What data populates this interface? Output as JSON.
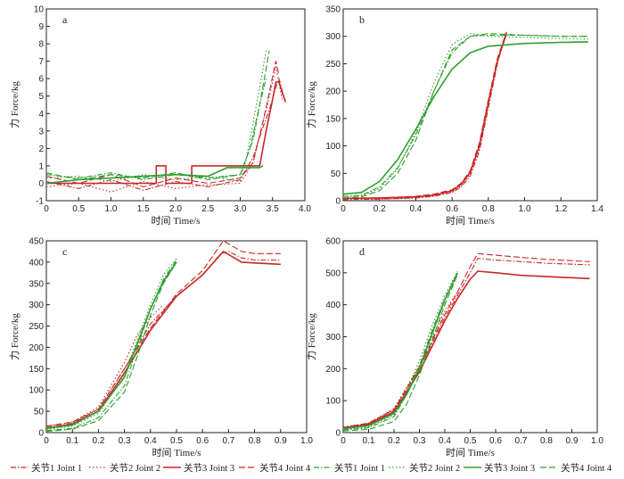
{
  "chart_data": [
    {
      "type": "line",
      "panel": "a",
      "xlabel": "时间 Time/s",
      "ylabel": "力 Force/kg",
      "xlim": [
        0,
        4.0
      ],
      "ylim": [
        -1,
        10
      ],
      "xticks": [
        "0",
        "0.5",
        "1.0",
        "1.5",
        "2.0",
        "2.5",
        "3.0",
        "3.5",
        "4.0"
      ],
      "yticks": [
        "-1",
        "0",
        "1",
        "2",
        "3",
        "4",
        "5",
        "6",
        "7",
        "8",
        "9",
        "10"
      ],
      "series": [
        {
          "name": "关节1 Joint 1",
          "group": "red",
          "style": "dashdot",
          "x": [
            0,
            0.5,
            1.0,
            1.5,
            2.0,
            2.5,
            3.0,
            3.2,
            3.35,
            3.45,
            3.55,
            3.6,
            3.7
          ],
          "y": [
            0.1,
            -0.3,
            0.2,
            -0.4,
            0.1,
            -0.2,
            0.2,
            1.5,
            3.2,
            4.2,
            5.5,
            6.0,
            4.6
          ]
        },
        {
          "name": "关节2 Joint 2",
          "group": "red",
          "style": "dotted",
          "x": [
            0,
            0.5,
            1.0,
            1.5,
            2.0,
            2.5,
            3.0,
            3.2,
            3.3,
            3.4,
            3.5,
            3.55,
            3.65
          ],
          "y": [
            -0.2,
            0.0,
            -0.5,
            0.1,
            -0.3,
            -0.1,
            0.0,
            1.2,
            2.8,
            4.2,
            5.8,
            6.7,
            4.8
          ]
        },
        {
          "name": "关节3 Joint 3",
          "group": "red",
          "style": "solid",
          "x": [
            0,
            1.7,
            1.7,
            1.85,
            1.85,
            2.25,
            2.25,
            3.3,
            3.4,
            3.5,
            3.55,
            3.6,
            3.65,
            3.7
          ],
          "y": [
            0.0,
            0.0,
            1.0,
            1.0,
            0.0,
            0.0,
            1.0,
            1.0,
            3.0,
            4.8,
            5.8,
            5.8,
            5.2,
            4.7
          ]
        },
        {
          "name": "关节4 Joint 4",
          "group": "red",
          "style": "dashed",
          "x": [
            0,
            0.5,
            1.0,
            1.5,
            2.0,
            2.5,
            3.0,
            3.2,
            3.35,
            3.45,
            3.55,
            3.6
          ],
          "y": [
            0.4,
            0.0,
            0.5,
            -0.2,
            0.3,
            0.0,
            0.3,
            1.2,
            3.5,
            5.2,
            7.0,
            6.2
          ]
        },
        {
          "name": "关节1 Joint 1",
          "group": "green",
          "style": "dashdot",
          "x": [
            0,
            0.5,
            1.0,
            1.5,
            2.0,
            2.5,
            3.0,
            3.2,
            3.3,
            3.4
          ],
          "y": [
            0.5,
            0.3,
            0.6,
            0.2,
            0.5,
            0.3,
            0.5,
            2.5,
            4.5,
            6.0
          ]
        },
        {
          "name": "关节2 Joint 2",
          "group": "green",
          "style": "dotted",
          "x": [
            0,
            0.5,
            1.0,
            1.5,
            2.0,
            2.5,
            3.0,
            3.1,
            3.2,
            3.3,
            3.4
          ],
          "y": [
            0.3,
            0.4,
            0.1,
            0.5,
            0.2,
            0.4,
            0.1,
            1.5,
            3.5,
            5.5,
            7.6
          ]
        },
        {
          "name": "关节3 Joint 3",
          "group": "green",
          "style": "solid",
          "x": [
            0,
            0.5,
            1.0,
            1.5,
            2.0,
            2.5,
            2.8,
            3.3,
            3.35
          ],
          "y": [
            0.0,
            0.2,
            0.3,
            0.4,
            0.5,
            0.4,
            0.9,
            0.9,
            1.0
          ]
        },
        {
          "name": "关节4 Joint 4",
          "group": "green",
          "style": "dashed",
          "x": [
            0,
            0.5,
            1.0,
            1.5,
            2.0,
            2.5,
            3.0,
            3.15,
            3.3,
            3.45
          ],
          "y": [
            0.6,
            0.2,
            0.5,
            0.3,
            0.6,
            0.2,
            0.5,
            2.0,
            4.5,
            7.6
          ]
        }
      ]
    },
    {
      "type": "line",
      "panel": "b",
      "xlabel": "时间 Time/s",
      "ylabel": "力 Force/kg",
      "xlim": [
        0,
        1.4
      ],
      "ylim": [
        0,
        350
      ],
      "xticks": [
        "0",
        "0.2",
        "0.4",
        "0.6",
        "0.8",
        "1.0",
        "1.2",
        "1.4"
      ],
      "yticks": [
        "0",
        "50",
        "100",
        "150",
        "200",
        "250",
        "300",
        "350"
      ],
      "series": [
        {
          "name": "关节1 Joint 1",
          "group": "red",
          "style": "dashdot",
          "x": [
            0,
            0.2,
            0.4,
            0.5,
            0.6,
            0.65,
            0.7,
            0.75,
            0.8,
            0.85,
            0.9
          ],
          "y": [
            2,
            3,
            5,
            8,
            15,
            25,
            45,
            90,
            170,
            250,
            310
          ]
        },
        {
          "name": "关节2 Joint 2",
          "group": "red",
          "style": "dotted",
          "x": [
            0,
            0.2,
            0.4,
            0.5,
            0.6,
            0.65,
            0.7,
            0.75,
            0.8,
            0.85,
            0.9
          ],
          "y": [
            3,
            3,
            5,
            9,
            16,
            27,
            48,
            95,
            175,
            255,
            305
          ]
        },
        {
          "name": "关节3 Joint 3",
          "group": "red",
          "style": "solid",
          "x": [
            0,
            0.2,
            0.4,
            0.5,
            0.6,
            0.65,
            0.7,
            0.75,
            0.8,
            0.85,
            0.9
          ],
          "y": [
            4,
            5,
            7,
            10,
            18,
            30,
            52,
            100,
            180,
            255,
            305
          ]
        },
        {
          "name": "关节4 Joint 4",
          "group": "red",
          "style": "dashed",
          "x": [
            0,
            0.2,
            0.4,
            0.5,
            0.6,
            0.65,
            0.7,
            0.75,
            0.8,
            0.85,
            0.9
          ],
          "y": [
            5,
            5,
            8,
            12,
            20,
            32,
            55,
            105,
            185,
            260,
            308
          ]
        },
        {
          "name": "关节1 Joint 1",
          "group": "green",
          "style": "dashdot",
          "x": [
            0,
            0.1,
            0.2,
            0.3,
            0.4,
            0.5,
            0.6,
            0.7,
            0.8,
            1.0,
            1.2,
            1.35
          ],
          "y": [
            8,
            10,
            25,
            60,
            120,
            200,
            270,
            300,
            302,
            302,
            300,
            300
          ]
        },
        {
          "name": "关节2 Joint 2",
          "group": "green",
          "style": "dotted",
          "x": [
            0,
            0.1,
            0.2,
            0.3,
            0.4,
            0.5,
            0.6,
            0.7,
            0.8,
            1.0,
            1.2,
            1.35
          ],
          "y": [
            7,
            9,
            22,
            58,
            125,
            215,
            285,
            305,
            300,
            298,
            296,
            295
          ]
        },
        {
          "name": "关节3 Joint 3",
          "group": "green",
          "style": "solid",
          "x": [
            0,
            0.1,
            0.2,
            0.3,
            0.4,
            0.5,
            0.6,
            0.7,
            0.8,
            1.0,
            1.2,
            1.35
          ],
          "y": [
            12,
            15,
            35,
            75,
            130,
            190,
            240,
            270,
            282,
            287,
            289,
            290
          ]
        },
        {
          "name": "关节4 Joint 4",
          "group": "green",
          "style": "dashed",
          "x": [
            0,
            0.1,
            0.2,
            0.3,
            0.4,
            0.5,
            0.6,
            0.7,
            0.8,
            1.0,
            1.2,
            1.35
          ],
          "y": [
            5,
            7,
            18,
            50,
            110,
            200,
            275,
            300,
            305,
            302,
            300,
            300
          ]
        }
      ]
    },
    {
      "type": "line",
      "panel": "c",
      "xlabel": "时间 Time/s",
      "ylabel": "力 Force/kg",
      "xlim": [
        0,
        1.0
      ],
      "ylim": [
        0,
        450
      ],
      "xticks": [
        "0",
        "0.1",
        "0.2",
        "0.3",
        "0.4",
        "0.5",
        "0.6",
        "0.7",
        "0.8",
        "0.9",
        "1.0"
      ],
      "yticks": [
        "0",
        "50",
        "100",
        "150",
        "200",
        "250",
        "300",
        "350",
        "400",
        "450"
      ],
      "series": [
        {
          "name": "关节1 Joint 1",
          "group": "red",
          "style": "dashdot",
          "x": [
            0,
            0.1,
            0.2,
            0.3,
            0.4,
            0.5,
            0.6,
            0.67,
            0.7,
            0.75,
            0.8,
            0.9
          ],
          "y": [
            12,
            22,
            55,
            150,
            255,
            320,
            370,
            420,
            425,
            410,
            405,
            405
          ]
        },
        {
          "name": "关节2 Joint 2",
          "group": "red",
          "style": "dotted",
          "x": [
            0,
            0.1,
            0.2,
            0.3,
            0.35,
            0.4,
            0.45
          ],
          "y": [
            15,
            25,
            60,
            165,
            230,
            270,
            300
          ]
        },
        {
          "name": "关节3 Joint 3",
          "group": "red",
          "style": "solid",
          "x": [
            0,
            0.1,
            0.2,
            0.3,
            0.4,
            0.5,
            0.6,
            0.68,
            0.75,
            0.8,
            0.9
          ],
          "y": [
            10,
            20,
            50,
            140,
            240,
            320,
            370,
            425,
            400,
            398,
            395
          ]
        },
        {
          "name": "关节4 Joint 4",
          "group": "red",
          "style": "dashed",
          "x": [
            0,
            0.1,
            0.2,
            0.3,
            0.4,
            0.5,
            0.6,
            0.68,
            0.75,
            0.8,
            0.9
          ],
          "y": [
            15,
            25,
            55,
            150,
            245,
            325,
            380,
            450,
            425,
            420,
            420
          ]
        },
        {
          "name": "关节1 Joint 1",
          "group": "green",
          "style": "dashdot",
          "x": [
            0,
            0.1,
            0.2,
            0.3,
            0.35,
            0.4,
            0.45,
            0.5
          ],
          "y": [
            5,
            10,
            35,
            110,
            200,
            290,
            360,
            405
          ]
        },
        {
          "name": "关节2 Joint 2",
          "group": "green",
          "style": "dotted",
          "x": [
            0,
            0.1,
            0.2,
            0.3,
            0.35,
            0.4,
            0.45,
            0.5
          ],
          "y": [
            8,
            15,
            45,
            135,
            220,
            300,
            370,
            408
          ]
        },
        {
          "name": "关节3 Joint 3",
          "group": "green",
          "style": "solid",
          "x": [
            0,
            0.1,
            0.2,
            0.3,
            0.35,
            0.4,
            0.45,
            0.5
          ],
          "y": [
            10,
            18,
            50,
            130,
            210,
            290,
            355,
            400
          ]
        },
        {
          "name": "关节4 Joint 4",
          "group": "green",
          "style": "dashed",
          "x": [
            0,
            0.1,
            0.2,
            0.3,
            0.35,
            0.4,
            0.45,
            0.5
          ],
          "y": [
            3,
            8,
            28,
            95,
            180,
            275,
            350,
            400
          ]
        }
      ]
    },
    {
      "type": "line",
      "panel": "d",
      "xlabel": "时间 Time/s",
      "ylabel": "力 Force/kg",
      "xlim": [
        0,
        1.0
      ],
      "ylim": [
        0,
        600
      ],
      "xticks": [
        "0",
        "0.1",
        "0.2",
        "0.3",
        "0.4",
        "0.5",
        "0.6",
        "0.7",
        "0.8",
        "0.9",
        "1.0"
      ],
      "yticks": [
        "0",
        "100",
        "200",
        "300",
        "400",
        "500",
        "600"
      ],
      "series": [
        {
          "name": "关节1 Joint 1",
          "group": "red",
          "style": "dashdot",
          "x": [
            0,
            0.1,
            0.2,
            0.3,
            0.4,
            0.45,
            0.5,
            0.53,
            0.6,
            0.7,
            0.8,
            0.97
          ],
          "y": [
            15,
            28,
            70,
            200,
            360,
            430,
            500,
            545,
            540,
            535,
            530,
            525
          ]
        },
        {
          "name": "关节2 Joint 2",
          "group": "red",
          "style": "dotted",
          "x": [
            0,
            0.1,
            0.2,
            0.3,
            0.35,
            0.4,
            0.45
          ],
          "y": [
            18,
            30,
            75,
            210,
            300,
            380,
            440
          ]
        },
        {
          "name": "关节3 Joint 3",
          "group": "red",
          "style": "solid",
          "x": [
            0,
            0.1,
            0.2,
            0.3,
            0.4,
            0.45,
            0.5,
            0.53,
            0.6,
            0.7,
            0.8,
            0.97
          ],
          "y": [
            14,
            26,
            65,
            190,
            350,
            420,
            480,
            505,
            500,
            492,
            488,
            482
          ]
        },
        {
          "name": "关节4 Joint 4",
          "group": "red",
          "style": "dashed",
          "x": [
            0,
            0.1,
            0.2,
            0.3,
            0.4,
            0.45,
            0.5,
            0.53,
            0.6,
            0.7,
            0.8,
            0.97
          ],
          "y": [
            16,
            30,
            72,
            205,
            370,
            440,
            520,
            560,
            555,
            548,
            542,
            535
          ]
        },
        {
          "name": "关节1 Joint 1",
          "group": "green",
          "style": "dashdot",
          "x": [
            0,
            0.1,
            0.2,
            0.25,
            0.3,
            0.35,
            0.4,
            0.45
          ],
          "y": [
            8,
            15,
            50,
            120,
            210,
            320,
            420,
            500
          ]
        },
        {
          "name": "关节2 Joint 2",
          "group": "green",
          "style": "dotted",
          "x": [
            0,
            0.1,
            0.2,
            0.25,
            0.3,
            0.35,
            0.4,
            0.45
          ],
          "y": [
            10,
            18,
            55,
            130,
            225,
            335,
            430,
            505
          ]
        },
        {
          "name": "关节3 Joint 3",
          "group": "green",
          "style": "solid",
          "x": [
            0,
            0.1,
            0.2,
            0.25,
            0.3,
            0.35,
            0.4,
            0.45
          ],
          "y": [
            12,
            22,
            60,
            120,
            200,
            310,
            415,
            500
          ]
        },
        {
          "name": "关节4 Joint 4",
          "group": "green",
          "style": "dashed",
          "x": [
            0,
            0.1,
            0.2,
            0.25,
            0.3,
            0.35,
            0.4,
            0.45
          ],
          "y": [
            5,
            10,
            35,
            90,
            180,
            290,
            400,
            495
          ]
        }
      ]
    }
  ],
  "legend": [
    {
      "label": "关节1 Joint 1",
      "group": "red",
      "style": "dashdot"
    },
    {
      "label": "关节2 Joint 2",
      "group": "red",
      "style": "dotted"
    },
    {
      "label": "关节3 Joint 3",
      "group": "red",
      "style": "solid"
    },
    {
      "label": "关节4 Joint 4",
      "group": "red",
      "style": "dashed"
    },
    {
      "label": "关节1 Joint 1",
      "group": "green",
      "style": "dashdot"
    },
    {
      "label": "关节2 Joint 2",
      "group": "green",
      "style": "dotted"
    },
    {
      "label": "关节3 Joint 3",
      "group": "green",
      "style": "solid"
    },
    {
      "label": "关节4 Joint 4",
      "group": "green",
      "style": "dashed"
    }
  ],
  "colors": {
    "red": "#c62828",
    "green": "#2e9e2e",
    "axis": "#222222"
  }
}
